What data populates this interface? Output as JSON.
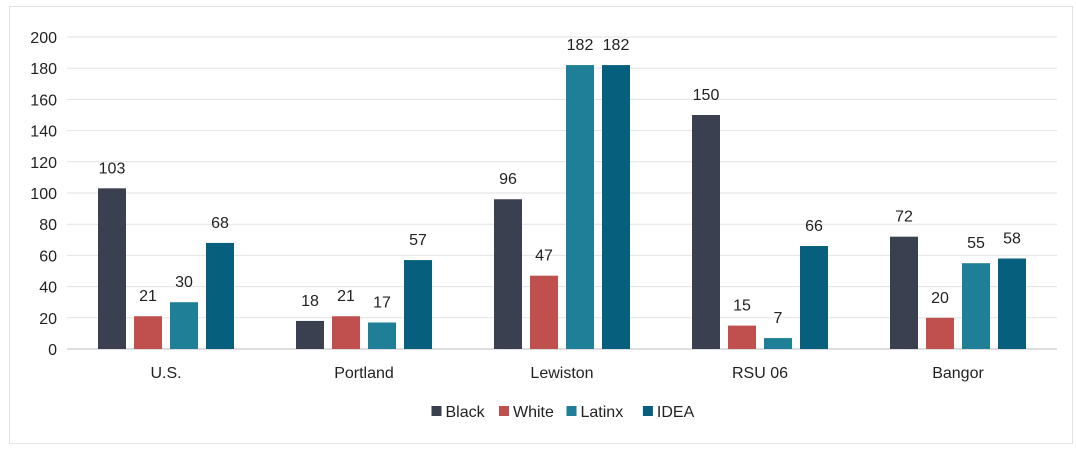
{
  "chart_data": {
    "type": "bar",
    "title": "",
    "xlabel": "",
    "ylabel": "",
    "categories": [
      "U.S.",
      "Portland",
      "Lewiston",
      "RSU 06",
      "Bangor"
    ],
    "series": [
      {
        "name": "Black",
        "color": "#3a4050",
        "values": [
          103,
          18,
          96,
          150,
          72
        ]
      },
      {
        "name": "White",
        "color": "#c0504d",
        "values": [
          21,
          21,
          47,
          15,
          20
        ]
      },
      {
        "name": "Latinx",
        "color": "#1f7f97",
        "values": [
          30,
          17,
          182,
          7,
          55
        ]
      },
      {
        "name": "IDEA",
        "color": "#055f7d",
        "values": [
          68,
          57,
          182,
          66,
          58
        ]
      }
    ],
    "ylim": [
      0,
      200
    ],
    "yticks": [
      0,
      20,
      40,
      60,
      80,
      100,
      120,
      140,
      160,
      180,
      200
    ],
    "grid": true,
    "legend_position": "bottom-center",
    "data_labels": true
  }
}
